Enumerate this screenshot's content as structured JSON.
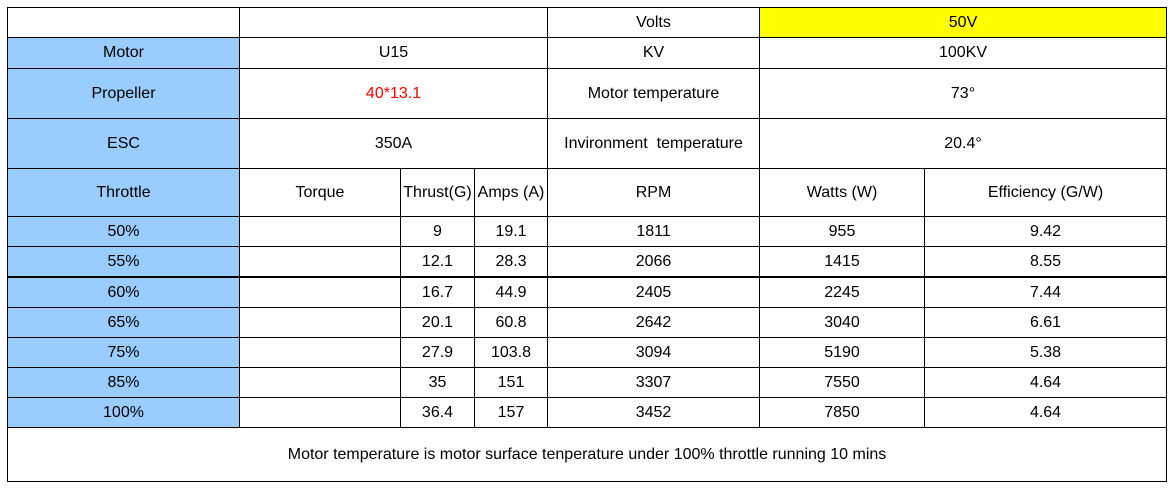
{
  "header": {
    "volts_label": "Volts",
    "volts_value": "50V"
  },
  "specs": {
    "motor_label": "Motor",
    "motor_value": "U15",
    "kv_label": "KV",
    "kv_value": "100KV",
    "propeller_label": "Propeller",
    "propeller_value": "40*13.1",
    "motor_temp_label": "Motor temperature",
    "motor_temp_value": "73°",
    "esc_label": "ESC",
    "esc_value": "350A",
    "env_temp_label": "Invironment  temperature",
    "env_temp_value": "20.4°"
  },
  "columns": {
    "throttle": "Throttle",
    "torque": "Torque",
    "thrust": "Thrust(G)",
    "amps": "Amps (A)",
    "rpm": "RPM",
    "watts": "Watts (W)",
    "efficiency": "Efficiency (G/W)"
  },
  "rows": [
    {
      "throttle": "50%",
      "torque": "",
      "thrust": "9",
      "amps": "19.1",
      "rpm": "1811",
      "watts": "955",
      "efficiency": "9.42"
    },
    {
      "throttle": "55%",
      "torque": "",
      "thrust": "12.1",
      "amps": "28.3",
      "rpm": "2066",
      "watts": "1415",
      "efficiency": "8.55"
    },
    {
      "throttle": "60%",
      "torque": "",
      "thrust": "16.7",
      "amps": "44.9",
      "rpm": "2405",
      "watts": "2245",
      "efficiency": "7.44"
    },
    {
      "throttle": "65%",
      "torque": "",
      "thrust": "20.1",
      "amps": "60.8",
      "rpm": "2642",
      "watts": "3040",
      "efficiency": "6.61"
    },
    {
      "throttle": "75%",
      "torque": "",
      "thrust": "27.9",
      "amps": "103.8",
      "rpm": "3094",
      "watts": "5190",
      "efficiency": "5.38"
    },
    {
      "throttle": "85%",
      "torque": "",
      "thrust": "35",
      "amps": "151",
      "rpm": "3307",
      "watts": "7550",
      "efficiency": "4.64"
    },
    {
      "throttle": "100%",
      "torque": "",
      "thrust": "36.4",
      "amps": "157",
      "rpm": "3452",
      "watts": "7850",
      "efficiency": "4.64"
    }
  ],
  "footer": {
    "note": "Motor temperature is motor surface tenperature under 100% throttle running 10 mins"
  },
  "colors": {
    "label_bg": "#99ccff",
    "highlight_bg": "#ffff00",
    "propeller_text": "#ff0000"
  }
}
